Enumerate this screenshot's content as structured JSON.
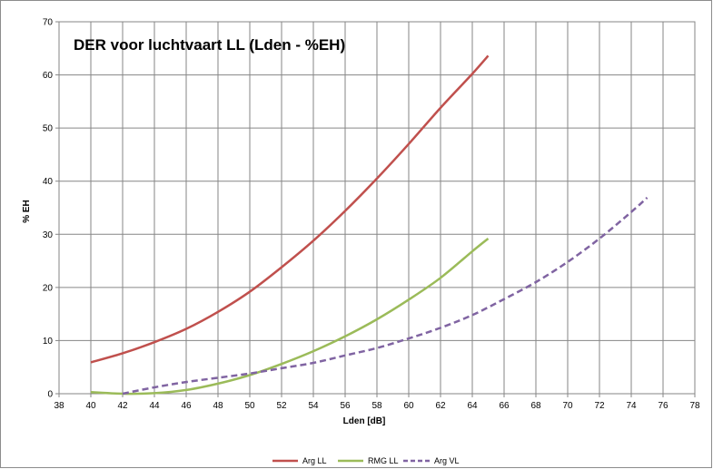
{
  "chart_data": {
    "type": "line",
    "title": "DER voor luchtvaart LL (Lden - %EH)",
    "xlabel": "Lden [dB]",
    "ylabel": "% EH",
    "xlim": [
      38,
      78
    ],
    "ylim": [
      0,
      70
    ],
    "xticks": [
      38,
      40,
      42,
      44,
      46,
      48,
      50,
      52,
      54,
      56,
      58,
      60,
      62,
      64,
      66,
      68,
      70,
      72,
      74,
      76,
      78
    ],
    "yticks": [
      0,
      10,
      20,
      30,
      40,
      50,
      60,
      70
    ],
    "grid": true,
    "legend_position": "bottom",
    "series": [
      {
        "name": "Arg LL",
        "color": "#c0504d",
        "dash": "solid",
        "x": [
          40,
          42,
          44,
          46,
          48,
          50,
          52,
          54,
          56,
          58,
          60,
          62,
          64,
          65
        ],
        "y": [
          5.9,
          7.6,
          9.7,
          12.2,
          15.4,
          19.2,
          23.8,
          28.8,
          34.4,
          40.5,
          47.0,
          53.8,
          60.2,
          63.6
        ]
      },
      {
        "name": "RMG LL",
        "color": "#9bbb59",
        "dash": "solid",
        "x": [
          40,
          42,
          44,
          46,
          48,
          50,
          52,
          54,
          56,
          58,
          60,
          62,
          64,
          65
        ],
        "y": [
          0.3,
          0.0,
          0.1,
          0.7,
          1.9,
          3.5,
          5.6,
          8.0,
          10.8,
          14.0,
          17.7,
          21.8,
          26.8,
          29.2
        ]
      },
      {
        "name": "Arg VL",
        "color": "#8064a2",
        "dash": "dashed",
        "x": [
          42,
          44,
          46,
          48,
          50,
          52,
          54,
          56,
          58,
          60,
          62,
          64,
          66,
          68,
          70,
          72,
          74,
          75
        ],
        "y": [
          0.0,
          1.2,
          2.2,
          3.0,
          3.8,
          4.8,
          5.8,
          7.2,
          8.6,
          10.4,
          12.4,
          14.8,
          17.8,
          21.0,
          24.8,
          29.2,
          34.2,
          36.9
        ]
      }
    ]
  }
}
